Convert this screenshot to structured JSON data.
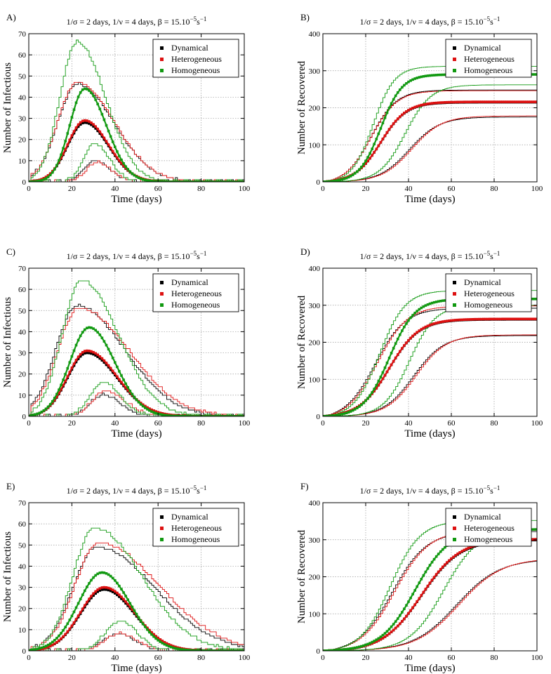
{
  "figure_title": "SIR epidemic simulations: infectious and recovered counts",
  "colors": {
    "dynamical": "#000000",
    "heterogeneous": "#dd1111",
    "homogeneous": "#119911",
    "grid": "#9a9a9a"
  },
  "chart_data": [
    {
      "id": "A",
      "type": "line",
      "label": "A)",
      "title": "1/σ = 2 days, 1/ν = 4 days, β = 15.10",
      "title_exp": "−5",
      "title_unit": "s",
      "title_unit_exp": "−1",
      "xlabel": "Time (days)",
      "ylabel": "Number of Infectious",
      "xlim": [
        0,
        100
      ],
      "ylim": [
        0,
        70
      ],
      "xticks": [
        0,
        20,
        40,
        60,
        80,
        100
      ],
      "yticks": [
        0,
        10,
        20,
        30,
        40,
        50,
        60,
        70
      ],
      "legend_position": "top-right",
      "legend": [
        "Dynamical",
        "Heterogeneous",
        "Homogeneous"
      ],
      "mean": {
        "dynamical": {
          "peak": 28,
          "t": 26,
          "w1": 8,
          "w2": 11
        },
        "heterogeneous": {
          "peak": 29,
          "t": 26,
          "w1": 8,
          "w2": 11
        },
        "homogeneous": {
          "peak": 44,
          "t": 26,
          "w1": 7,
          "w2": 10
        }
      },
      "bands": {
        "dynamical": [
          {
            "peak": 46,
            "t": 22,
            "w1": 9,
            "w2": 17
          },
          {
            "peak": 10,
            "t": 30,
            "w1": 5,
            "w2": 7
          }
        ],
        "heterogeneous": [
          {
            "peak": 47,
            "t": 22,
            "w1": 9,
            "w2": 17
          },
          {
            "peak": 9,
            "t": 31,
            "w1": 5,
            "w2": 7
          }
        ],
        "homogeneous": [
          {
            "peak": 66,
            "t": 22,
            "w1": 8,
            "w2": 13
          },
          {
            "peak": 18,
            "t": 30,
            "w1": 5,
            "w2": 7
          }
        ]
      }
    },
    {
      "id": "B",
      "type": "line",
      "label": "B)",
      "title": "1/σ = 2 days, 1/ν = 4 days, β = 15.10",
      "title_exp": "−5",
      "title_unit": "s",
      "title_unit_exp": "−1",
      "xlabel": "Time (days)",
      "ylabel": "Number of Recovered",
      "xlim": [
        0,
        100
      ],
      "ylim": [
        0,
        400
      ],
      "xticks": [
        0,
        20,
        40,
        60,
        80,
        100
      ],
      "yticks": [
        0,
        100,
        200,
        300,
        400
      ],
      "legend_position": "top-right",
      "legend": [
        "Dynamical",
        "Heterogeneous",
        "Homogeneous"
      ],
      "mean": {
        "dynamical": {
          "final": 215,
          "mid": 27,
          "scale": 6
        },
        "heterogeneous": {
          "final": 216,
          "mid": 27,
          "scale": 6
        },
        "homogeneous": {
          "final": 290,
          "mid": 27,
          "scale": 5
        }
      },
      "bands": {
        "dynamical": [
          {
            "final": 248,
            "mid": 22,
            "scale": 6
          },
          {
            "final": 175,
            "mid": 40,
            "scale": 7
          }
        ],
        "heterogeneous": [
          {
            "final": 246,
            "mid": 22,
            "scale": 6
          },
          {
            "final": 178,
            "mid": 41,
            "scale": 7
          }
        ],
        "homogeneous": [
          {
            "final": 312,
            "mid": 23,
            "scale": 5
          },
          {
            "final": 262,
            "mid": 38,
            "scale": 6
          }
        ]
      }
    },
    {
      "id": "C",
      "type": "line",
      "label": "C)",
      "title": "1/σ = 2 days, 1/ν = 4 days, β = 15.10",
      "title_exp": "−5",
      "title_unit": "s",
      "title_unit_exp": "−1",
      "xlabel": "Time (days)",
      "ylabel": "Number of Infectious",
      "xlim": [
        0,
        100
      ],
      "ylim": [
        0,
        70
      ],
      "xticks": [
        0,
        20,
        40,
        60,
        80,
        100
      ],
      "yticks": [
        0,
        10,
        20,
        30,
        40,
        50,
        60,
        70
      ],
      "legend_position": "top-right",
      "legend": [
        "Dynamical",
        "Heterogeneous",
        "Homogeneous"
      ],
      "mean": {
        "dynamical": {
          "peak": 30,
          "t": 27,
          "w1": 9,
          "w2": 14
        },
        "heterogeneous": {
          "peak": 31,
          "t": 27,
          "w1": 9,
          "w2": 14
        },
        "homogeneous": {
          "peak": 42,
          "t": 28,
          "w1": 9,
          "w2": 12
        }
      },
      "bands": {
        "dynamical": [
          {
            "peak": 52,
            "t": 22,
            "w1": 10,
            "w2": 22
          },
          {
            "peak": 10,
            "t": 34,
            "w1": 6,
            "w2": 8
          }
        ],
        "heterogeneous": [
          {
            "peak": 51,
            "t": 23,
            "w1": 10,
            "w2": 23
          },
          {
            "peak": 12,
            "t": 35,
            "w1": 6,
            "w2": 9
          }
        ],
        "homogeneous": [
          {
            "peak": 64,
            "t": 24,
            "w1": 9,
            "w2": 17
          },
          {
            "peak": 16,
            "t": 34,
            "w1": 6,
            "w2": 8
          }
        ]
      }
    },
    {
      "id": "D",
      "type": "line",
      "label": "D)",
      "title": "1/σ = 2 days, 1/ν = 4 days, β = 15.10",
      "title_exp": "−5",
      "title_unit": "s",
      "title_unit_exp": "−1",
      "xlabel": "Time (days)",
      "ylabel": "Number of Recovered",
      "xlim": [
        0,
        100
      ],
      "ylim": [
        0,
        400
      ],
      "xticks": [
        0,
        20,
        40,
        60,
        80,
        100
      ],
      "yticks": [
        0,
        100,
        200,
        300,
        400
      ],
      "legend_position": "top-right",
      "legend": [
        "Dynamical",
        "Heterogeneous",
        "Homogeneous"
      ],
      "mean": {
        "dynamical": {
          "final": 262,
          "mid": 31,
          "scale": 7
        },
        "heterogeneous": {
          "final": 263,
          "mid": 31,
          "scale": 7
        },
        "homogeneous": {
          "final": 317,
          "mid": 31,
          "scale": 6
        }
      },
      "bands": {
        "dynamical": [
          {
            "final": 292,
            "mid": 24,
            "scale": 7
          },
          {
            "final": 218,
            "mid": 42,
            "scale": 7
          }
        ],
        "heterogeneous": [
          {
            "final": 298,
            "mid": 25,
            "scale": 7
          },
          {
            "final": 220,
            "mid": 43,
            "scale": 7
          }
        ],
        "homogeneous": [
          {
            "final": 340,
            "mid": 26,
            "scale": 6
          },
          {
            "final": 300,
            "mid": 40,
            "scale": 6
          }
        ]
      }
    },
    {
      "id": "E",
      "type": "line",
      "label": "E)",
      "title": "1/σ = 2 days, 1/ν = 4 days, β = 15.10",
      "title_exp": "−5",
      "title_unit": "s",
      "title_unit_exp": "−1",
      "xlabel": "Time (days)",
      "ylabel": "Number of Infectious",
      "xlim": [
        0,
        100
      ],
      "ylim": [
        0,
        70
      ],
      "xticks": [
        0,
        20,
        40,
        60,
        80,
        100
      ],
      "yticks": [
        0,
        10,
        20,
        30,
        40,
        50,
        60,
        70
      ],
      "legend_position": "top-right",
      "legend": [
        "Dynamical",
        "Heterogeneous",
        "Homogeneous"
      ],
      "mean": {
        "dynamical": {
          "peak": 29,
          "t": 35,
          "w1": 11,
          "w2": 14
        },
        "heterogeneous": {
          "peak": 30,
          "t": 35,
          "w1": 11,
          "w2": 14
        },
        "homogeneous": {
          "peak": 37,
          "t": 34,
          "w1": 11,
          "w2": 13
        }
      },
      "bands": {
        "dynamical": [
          {
            "peak": 49,
            "t": 31,
            "w1": 11,
            "w2": 27
          },
          {
            "peak": 8,
            "t": 41,
            "w1": 7,
            "w2": 8
          }
        ],
        "heterogeneous": [
          {
            "peak": 51,
            "t": 32,
            "w1": 11,
            "w2": 28
          },
          {
            "peak": 8,
            "t": 42,
            "w1": 7,
            "w2": 8
          }
        ],
        "homogeneous": [
          {
            "peak": 58,
            "t": 30,
            "w1": 10,
            "w2": 22
          },
          {
            "peak": 14,
            "t": 42,
            "w1": 7,
            "w2": 8
          }
        ]
      }
    },
    {
      "id": "F",
      "type": "line",
      "label": "F)",
      "title": "1/σ = 2 days, 1/ν = 4 days, β = 15.10",
      "title_exp": "−5",
      "title_unit": "s",
      "title_unit_exp": "−1",
      "xlabel": "Time (days)",
      "ylabel": "Number of Recovered",
      "xlim": [
        0,
        100
      ],
      "ylim": [
        0,
        400
      ],
      "xticks": [
        0,
        20,
        40,
        60,
        80,
        100
      ],
      "yticks": [
        0,
        100,
        200,
        300,
        400
      ],
      "legend_position": "top-right",
      "legend": [
        "Dynamical",
        "Heterogeneous",
        "Homogeneous"
      ],
      "mean": {
        "dynamical": {
          "final": 300,
          "mid": 46,
          "scale": 9
        },
        "heterogeneous": {
          "final": 302,
          "mid": 46,
          "scale": 9
        },
        "homogeneous": {
          "final": 328,
          "mid": 43,
          "scale": 8
        }
      },
      "bands": {
        "dynamical": [
          {
            "final": 322,
            "mid": 32,
            "scale": 8
          },
          {
            "final": 248,
            "mid": 62,
            "scale": 10
          }
        ],
        "heterogeneous": [
          {
            "final": 325,
            "mid": 33,
            "scale": 8
          },
          {
            "final": 250,
            "mid": 63,
            "scale": 10
          }
        ],
        "homogeneous": [
          {
            "final": 352,
            "mid": 31,
            "scale": 7
          },
          {
            "final": 328,
            "mid": 56,
            "scale": 8
          }
        ]
      }
    }
  ]
}
